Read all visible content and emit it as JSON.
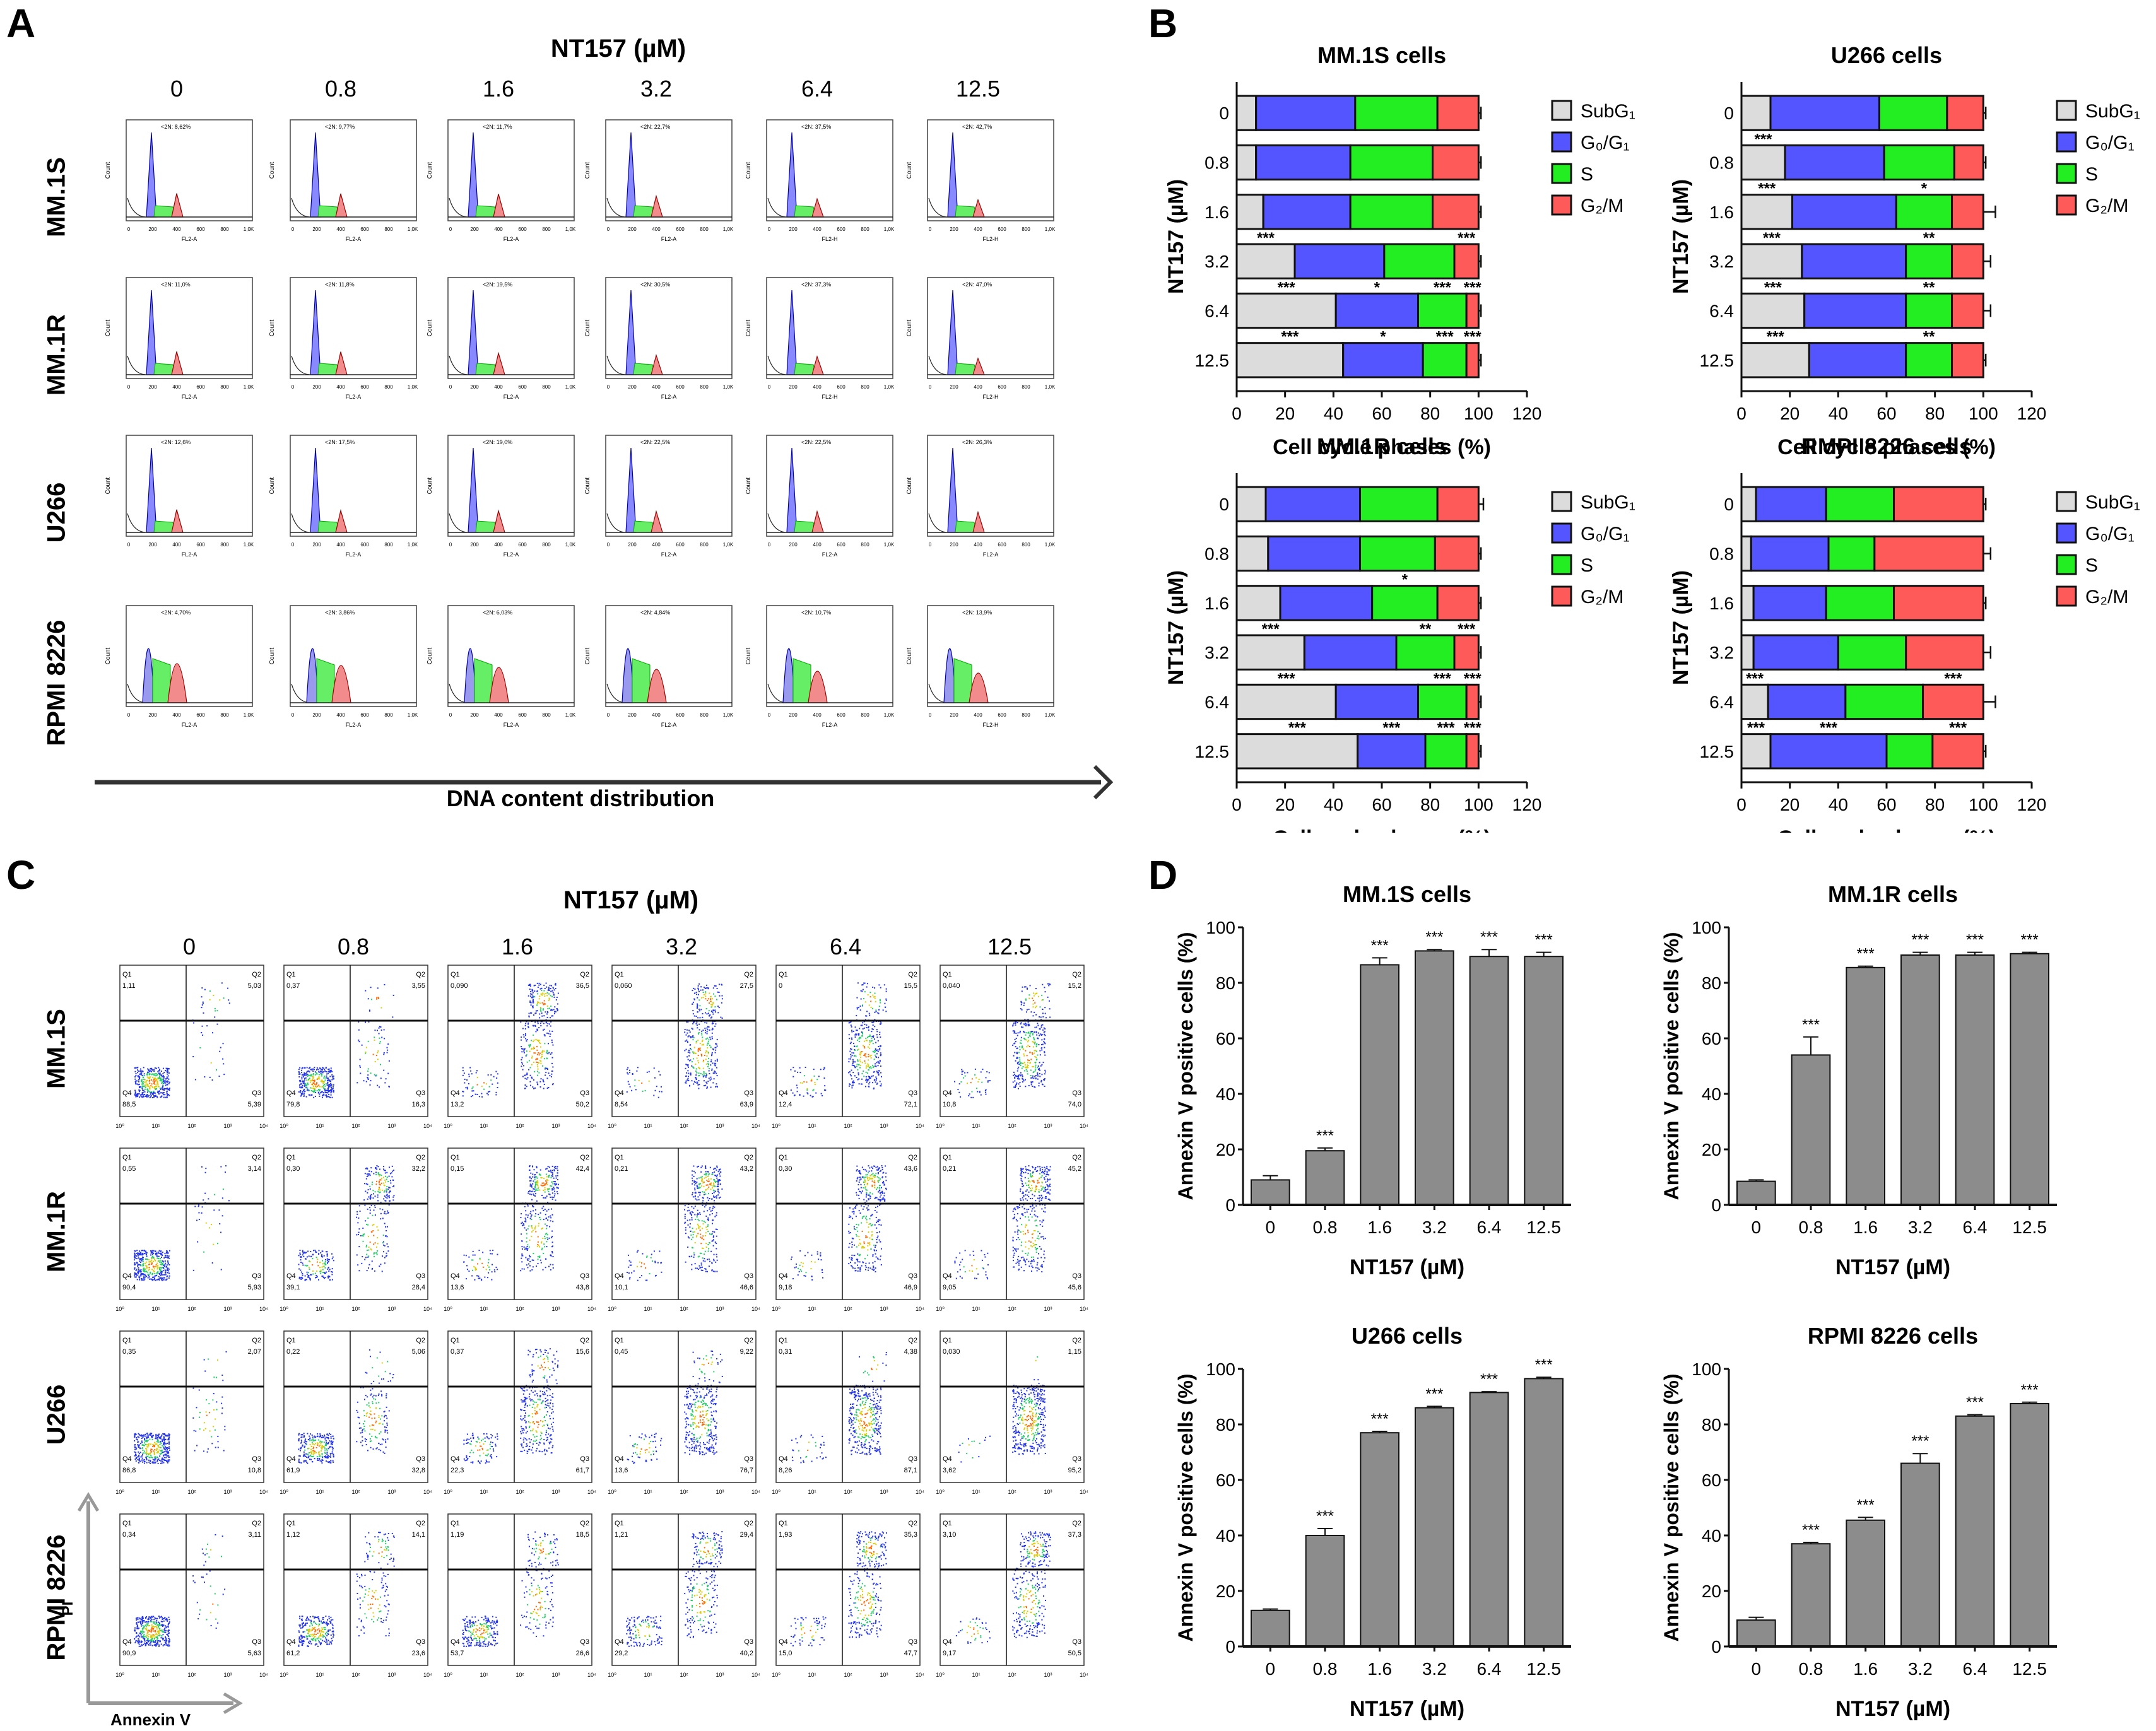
{
  "concentrations": [
    "0",
    "0.8",
    "1.6",
    "3.2",
    "6.4",
    "12.5"
  ],
  "cell_lines": [
    "MM.1S",
    "MM.1R",
    "U266",
    "RPMI 8226"
  ],
  "panelA": {
    "letter": "A",
    "title": "NT157 (µM)",
    "xaxis_arrow_label": "DNA content distribution",
    "hist_ylabel": "Count",
    "hist_xticks": [
      "0",
      "200",
      "400",
      "600",
      "800",
      "1,0K"
    ],
    "hist_xlabels": [
      [
        "FL2-A",
        "FL2-A",
        "FL2-A",
        "FL2-A",
        "FL2-H",
        "FL2-H"
      ],
      [
        "FL2-A",
        "FL2-A",
        "FL2-A",
        "FL2-A",
        "FL2-H",
        "FL2-H"
      ],
      [
        "FL2-A",
        "FL2-A",
        "FL2-A",
        "FL2-A",
        "FL2-A",
        "FL2-A"
      ],
      [
        "FL2-A",
        "FL2-A",
        "FL2-A",
        "FL2-A",
        "FL2-A",
        "FL2-H"
      ]
    ],
    "hist_sub2N": [
      [
        "<2N: 8,62%",
        "<2N: 9,77%",
        "<2N: 11,7%",
        "<2N: 22,7%",
        "<2N: 37,5%",
        "<2N: 42,7%"
      ],
      [
        "<2N: 11,0%",
        "<2N: 11,8%",
        "<2N: 19,5%",
        "<2N: 30,5%",
        "<2N: 37,3%",
        "<2N: 47,0%"
      ],
      [
        "<2N: 12,6%",
        "<2N: 17,5%",
        "<2N: 19,0%",
        "<2N: 22,5%",
        "<2N: 22,5%",
        "<2N: 26,3%"
      ],
      [
        "<2N: 4,70%",
        "<2N: 3,86%",
        "<2N: 6,03%",
        "<2N: 4,84%",
        "<2N: 10,7%",
        "<2N: 13,9%"
      ]
    ],
    "hist_ymax": [
      [
        250,
        230,
        180,
        180,
        260,
        270
      ],
      [
        180,
        180,
        170,
        170,
        170,
        150
      ],
      [
        150,
        150,
        150,
        150,
        150,
        150
      ],
      [
        30,
        30,
        30,
        25,
        35,
        55
      ]
    ]
  },
  "panelB": {
    "letter": "B",
    "legend": [
      "SubG₁",
      "G₀/G₁",
      "S",
      "G₂/M"
    ],
    "colors": {
      "subg1": "#dcdcdc",
      "g0g1": "#5555ff",
      "s": "#22ee22",
      "g2m": "#ff5a5a"
    }
  },
  "panelC": {
    "letter": "C",
    "title": "NT157 (µM)",
    "yaxis_label": "PI",
    "xaxis_label": "Annexin V",
    "quad_labels": [
      "Q1",
      "Q2",
      "Q3",
      "Q4"
    ],
    "tick_labels": [
      "10⁰",
      "10¹",
      "10²",
      "10³",
      "10⁴"
    ],
    "quadrants": [
      [
        {
          "q1": "1,11",
          "q2": "5,03",
          "q4": "88,5",
          "q3": "5,39"
        },
        {
          "q1": "0,37",
          "q2": "3,55",
          "q4": "79,8",
          "q3": "16,3"
        },
        {
          "q1": "0,090",
          "q2": "36,5",
          "q4": "13,2",
          "q3": "50,2"
        },
        {
          "q1": "0,060",
          "q2": "27,5",
          "q4": "8,54",
          "q3": "63,9"
        },
        {
          "q1": "0",
          "q2": "15,5",
          "q4": "12,4",
          "q3": "72,1"
        },
        {
          "q1": "0,040",
          "q2": "15,2",
          "q4": "10,8",
          "q3": "74,0"
        }
      ],
      [
        {
          "q1": "0,55",
          "q2": "3,14",
          "q4": "90,4",
          "q3": "5,93"
        },
        {
          "q1": "0,30",
          "q2": "32,2",
          "q4": "39,1",
          "q3": "28,4"
        },
        {
          "q1": "0,15",
          "q2": "42,4",
          "q4": "13,6",
          "q3": "43,8"
        },
        {
          "q1": "0,21",
          "q2": "43,2",
          "q4": "10,1",
          "q3": "46,6"
        },
        {
          "q1": "0,30",
          "q2": "43,6",
          "q4": "9,18",
          "q3": "46,9"
        },
        {
          "q1": "0,21",
          "q2": "45,2",
          "q4": "9,05",
          "q3": "45,6"
        }
      ],
      [
        {
          "q1": "0,35",
          "q2": "2,07",
          "q4": "86,8",
          "q3": "10,8"
        },
        {
          "q1": "0,22",
          "q2": "5,06",
          "q4": "61,9",
          "q3": "32,8"
        },
        {
          "q1": "0,37",
          "q2": "15,6",
          "q4": "22,3",
          "q3": "61,7"
        },
        {
          "q1": "0,45",
          "q2": "9,22",
          "q4": "13,6",
          "q3": "76,7"
        },
        {
          "q1": "0,31",
          "q2": "4,38",
          "q4": "8,26",
          "q3": "87,1"
        },
        {
          "q1": "0,030",
          "q2": "1,15",
          "q4": "3,62",
          "q3": "95,2"
        }
      ],
      [
        {
          "q1": "0,34",
          "q2": "3,11",
          "q4": "90,9",
          "q3": "5,63"
        },
        {
          "q1": "1,12",
          "q2": "14,1",
          "q4": "61,2",
          "q3": "23,6"
        },
        {
          "q1": "1,19",
          "q2": "18,5",
          "q4": "53,7",
          "q3": "26,6"
        },
        {
          "q1": "1,21",
          "q2": "29,4",
          "q4": "29,2",
          "q3": "40,2"
        },
        {
          "q1": "1,93",
          "q2": "35,3",
          "q4": "15,0",
          "q3": "47,7"
        },
        {
          "q1": "3,10",
          "q2": "37,3",
          "q4": "9,17",
          "q3": "50,5"
        }
      ]
    ]
  },
  "panelD": {
    "letter": "D"
  },
  "chart_data": [
    {
      "id": "B-MM1S",
      "type": "bar",
      "orientation": "horizontal",
      "stacked": true,
      "title": "MM.1S cells",
      "xlabel": "Cell cycle phases (%)",
      "ylabel": "NT157 (µM)",
      "xlim": [
        0,
        120
      ],
      "xticks": [
        "0",
        "20",
        "40",
        "60",
        "80",
        "100",
        "120"
      ],
      "categories": [
        "0",
        "0.8",
        "1.6",
        "3.2",
        "6.4",
        "12.5"
      ],
      "series": [
        {
          "name": "SubG1",
          "values": [
            8,
            8,
            11,
            24,
            41,
            44
          ],
          "errors": [
            1,
            1,
            1,
            6,
            4,
            5
          ]
        },
        {
          "name": "G0/G1",
          "values": [
            41,
            39,
            36,
            37,
            34,
            33
          ],
          "errors": [
            3,
            1,
            0.5,
            2,
            4,
            3
          ]
        },
        {
          "name": "S",
          "values": [
            34,
            34,
            34,
            29,
            20,
            18
          ],
          "errors": [
            0.5,
            1,
            2,
            3,
            0.5,
            0.5
          ]
        },
        {
          "name": "G2/M",
          "values": [
            17,
            19,
            19,
            10,
            5,
            5
          ],
          "errors": [
            1,
            1,
            1,
            1,
            1,
            1
          ]
        }
      ],
      "significance": [
        [
          "",
          "",
          "",
          ""
        ],
        [
          "",
          "",
          "",
          ""
        ],
        [
          "",
          "",
          "",
          ""
        ],
        [
          "***",
          "",
          "",
          "***"
        ],
        [
          "***",
          "*",
          "***",
          "***"
        ],
        [
          "***",
          "*",
          "***",
          "***"
        ]
      ]
    },
    {
      "id": "B-U266",
      "type": "bar",
      "orientation": "horizontal",
      "stacked": true,
      "title": "U266 cells",
      "xlabel": "Cell cycle phases (%)",
      "ylabel": "NT157 (µM)",
      "xlim": [
        0,
        120
      ],
      "xticks": [
        "0",
        "20",
        "40",
        "60",
        "80",
        "100",
        "120"
      ],
      "categories": [
        "0",
        "0.8",
        "1.6",
        "3.2",
        "6.4",
        "12.5"
      ],
      "series": [
        {
          "name": "SubG1",
          "values": [
            12,
            18,
            21,
            25,
            26,
            28
          ],
          "errors": [
            1,
            1,
            1,
            1,
            2,
            1
          ]
        },
        {
          "name": "G0/G1",
          "values": [
            45,
            41,
            43,
            43,
            42,
            40
          ],
          "errors": [
            1,
            1,
            2,
            2,
            2,
            1
          ]
        },
        {
          "name": "S",
          "values": [
            28,
            29,
            23,
            19,
            19,
            19
          ],
          "errors": [
            1,
            1,
            2,
            2,
            1,
            1
          ]
        },
        {
          "name": "G2/M",
          "values": [
            15,
            12,
            13,
            13,
            13,
            13
          ],
          "errors": [
            1,
            1,
            5,
            3,
            3,
            1
          ]
        }
      ],
      "significance": [
        [
          "",
          "",
          "",
          ""
        ],
        [
          "***",
          "",
          "",
          ""
        ],
        [
          "***",
          "",
          "*",
          ""
        ],
        [
          "***",
          "",
          "**",
          ""
        ],
        [
          "***",
          "",
          "**",
          ""
        ],
        [
          "***",
          "",
          "**",
          ""
        ]
      ]
    },
    {
      "id": "B-MM1R",
      "type": "bar",
      "orientation": "horizontal",
      "stacked": true,
      "title": "MM.1R cells",
      "xlabel": "Cell cycle phases (%)",
      "ylabel": "NT157 (µM)",
      "xlim": [
        0,
        120
      ],
      "xticks": [
        "0",
        "20",
        "40",
        "60",
        "80",
        "100",
        "120"
      ],
      "categories": [
        "0",
        "0.8",
        "1.6",
        "3.2",
        "6.4",
        "12.5"
      ],
      "series": [
        {
          "name": "SubG1",
          "values": [
            12,
            13,
            18,
            28,
            41,
            50
          ],
          "errors": [
            1,
            1,
            3,
            3,
            4,
            2
          ]
        },
        {
          "name": "G0/G1",
          "values": [
            39,
            38,
            38,
            38,
            34,
            28
          ],
          "errors": [
            1,
            1,
            1,
            1,
            3,
            4
          ]
        },
        {
          "name": "S",
          "values": [
            32,
            31,
            27,
            24,
            20,
            17
          ],
          "errors": [
            1,
            1,
            1,
            2,
            1,
            2
          ]
        },
        {
          "name": "G2/M",
          "values": [
            17,
            18,
            17,
            10,
            5,
            5
          ],
          "errors": [
            2,
            1,
            1,
            1,
            1,
            1
          ]
        }
      ],
      "significance": [
        [
          "",
          "",
          "",
          ""
        ],
        [
          "",
          "",
          "",
          ""
        ],
        [
          "",
          "",
          "*",
          ""
        ],
        [
          "***",
          "",
          "**",
          "***"
        ],
        [
          "***",
          "",
          "***",
          "***"
        ],
        [
          "***",
          "***",
          "***",
          "***"
        ]
      ]
    },
    {
      "id": "B-RPMI8226",
      "type": "bar",
      "orientation": "horizontal",
      "stacked": true,
      "title": "RMPI 8226 cells",
      "xlabel": "Cell cycle phases (%)",
      "ylabel": "NT157 (µM)",
      "xlim": [
        0,
        120
      ],
      "xticks": [
        "0",
        "20",
        "40",
        "60",
        "80",
        "100",
        "120"
      ],
      "categories": [
        "0",
        "0.8",
        "1.6",
        "3.2",
        "6.4",
        "12.5"
      ],
      "series": [
        {
          "name": "SubG1",
          "values": [
            6,
            4,
            5,
            5,
            11,
            12
          ],
          "errors": [
            1,
            1,
            1,
            1,
            1,
            2
          ]
        },
        {
          "name": "G0/G1",
          "values": [
            29,
            32,
            30,
            35,
            32,
            48
          ],
          "errors": [
            3,
            4,
            2,
            2,
            1,
            1
          ]
        },
        {
          "name": "S",
          "values": [
            28,
            19,
            28,
            28,
            32,
            19
          ],
          "errors": [
            1,
            8,
            1,
            6,
            10,
            1
          ]
        },
        {
          "name": "G2/M",
          "values": [
            37,
            45,
            37,
            32,
            25,
            21
          ],
          "errors": [
            1,
            3,
            1,
            3,
            5,
            1
          ]
        }
      ],
      "significance": [
        [
          "",
          "",
          "",
          ""
        ],
        [
          "",
          "",
          "",
          ""
        ],
        [
          "",
          "",
          "",
          ""
        ],
        [
          "",
          "",
          "",
          ""
        ],
        [
          "***",
          "",
          "",
          "***"
        ],
        [
          "***",
          "***",
          "",
          "***"
        ]
      ]
    },
    {
      "id": "D-MM1S",
      "type": "bar",
      "title": "MM.1S cells",
      "xlabel": "NT157 (µM)",
      "ylabel": "Annexin V positive cells (%)",
      "ylim": [
        0,
        100
      ],
      "yticks": [
        "0",
        "20",
        "40",
        "60",
        "80",
        "100"
      ],
      "categories": [
        "0",
        "0.8",
        "1.6",
        "3.2",
        "6.4",
        "12.5"
      ],
      "values": [
        9,
        19.5,
        86.5,
        91.5,
        89.5,
        89.5
      ],
      "errors": [
        1.5,
        1,
        2.5,
        0.5,
        2.5,
        1.5
      ],
      "significance": [
        "",
        "***",
        "***",
        "***",
        "***",
        "***"
      ]
    },
    {
      "id": "D-MM1R",
      "type": "bar",
      "title": "MM.1R cells",
      "xlabel": "NT157 (µM)",
      "ylabel": "Annexin V positive cells (%)",
      "ylim": [
        0,
        100
      ],
      "yticks": [
        "0",
        "20",
        "40",
        "60",
        "80",
        "100"
      ],
      "categories": [
        "0",
        "0.8",
        "1.6",
        "3.2",
        "6.4",
        "12.5"
      ],
      "values": [
        8.5,
        54,
        85.5,
        90,
        90,
        90.5
      ],
      "errors": [
        0.5,
        6.5,
        0.5,
        1,
        1,
        0.5
      ],
      "significance": [
        "",
        "***",
        "***",
        "***",
        "***",
        "***"
      ]
    },
    {
      "id": "D-U266",
      "type": "bar",
      "title": "U266 cells",
      "xlabel": "NT157 (µM)",
      "ylabel": "Annexin V positive cells (%)",
      "ylim": [
        0,
        100
      ],
      "yticks": [
        "0",
        "20",
        "40",
        "60",
        "80",
        "100"
      ],
      "categories": [
        "0",
        "0.8",
        "1.6",
        "3.2",
        "6.4",
        "12.5"
      ],
      "values": [
        13,
        40,
        77,
        86,
        91.5,
        96.5
      ],
      "errors": [
        0.5,
        2.5,
        0.5,
        0.5,
        0.3,
        0.5
      ],
      "significance": [
        "",
        "***",
        "***",
        "***",
        "***",
        "***"
      ]
    },
    {
      "id": "D-RPMI8226",
      "type": "bar",
      "title": "RPMI 8226 cells",
      "xlabel": "NT157 (µM)",
      "ylabel": "Annexin V positive cells (%)",
      "ylim": [
        0,
        100
      ],
      "yticks": [
        "0",
        "20",
        "40",
        "60",
        "80",
        "100"
      ],
      "categories": [
        "0",
        "0.8",
        "1.6",
        "3.2",
        "6.4",
        "12.5"
      ],
      "values": [
        9.5,
        37,
        45.5,
        66,
        83,
        87.5
      ],
      "errors": [
        1,
        0.5,
        1,
        3.5,
        0.5,
        0.5
      ],
      "significance": [
        "",
        "***",
        "***",
        "***",
        "***",
        "***"
      ]
    }
  ]
}
